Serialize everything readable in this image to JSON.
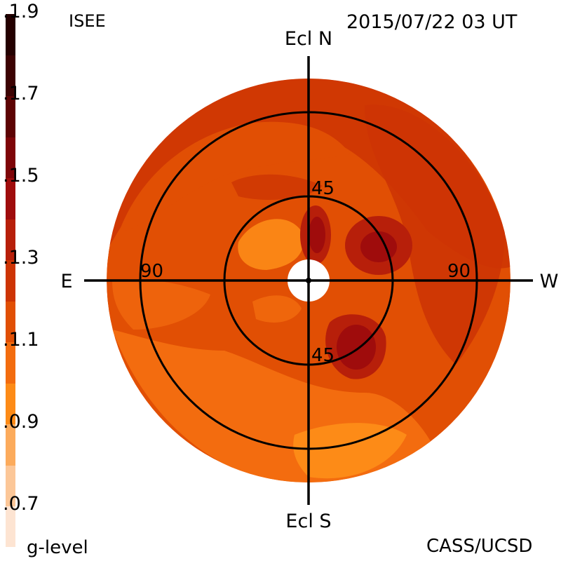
{
  "header": {
    "source": "ISEE",
    "timestamp": "2015/07/22 03 UT"
  },
  "footer": {
    "colorbar_label": "g-level",
    "credit": "CASS/UCSD"
  },
  "directions": {
    "north": "Ecl N",
    "south": "Ecl S",
    "east": "E",
    "west": "W"
  },
  "ring_labels": {
    "inner_top": "45",
    "inner_bottom": "45",
    "outer_left": "90",
    "outer_right": "90"
  },
  "colorbar": {
    "ticks": [
      "1.9",
      "1.7",
      "1.5",
      "1.3",
      "1.1",
      "0.9",
      "0.7"
    ],
    "colors_bottom_to_top": [
      "#fde4d2",
      "#fcc798",
      "#fcab5c",
      "#fd8b17",
      "#f36c0f",
      "#e14f04",
      "#cd3404",
      "#b71f0a",
      "#9f0c0c",
      "#7e0508",
      "#5d0303",
      "#3c0202",
      "#240000"
    ],
    "range": [
      0.6,
      1.9
    ]
  },
  "map": {
    "background_level_color": "#e14f04",
    "low_region_color": "#f36c0f",
    "lowest_region_color": "#fd8b17",
    "high_region_color": "#cd3404",
    "higher_region_color": "#b71f0a",
    "peak_region_color": "#9f0c0c"
  }
}
